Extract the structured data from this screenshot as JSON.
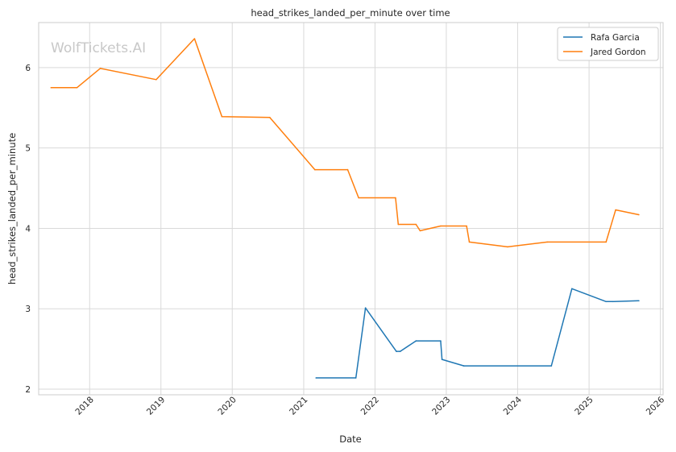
{
  "chart_data": {
    "type": "line",
    "title": "head_strikes_landed_per_minute over time",
    "xlabel": "Date",
    "ylabel": "head_strikes_landed_per_minute",
    "watermark": "WolfTickets.AI",
    "x_ticks": [
      "2018",
      "2019",
      "2020",
      "2021",
      "2022",
      "2023",
      "2024",
      "2025",
      "2026"
    ],
    "y_ticks": [
      "2",
      "3",
      "4",
      "5",
      "6"
    ],
    "xlim": [
      "2017-04-15",
      "2026-01-15"
    ],
    "ylim": [
      1.93,
      6.56
    ],
    "grid": true,
    "legend_position": "top-right",
    "series": [
      {
        "name": "Rafa Garcia",
        "color": "#1f77b4",
        "points": [
          [
            "2021-03-05",
            2.14
          ],
          [
            "2021-09-25",
            2.14
          ],
          [
            "2021-11-13",
            3.01
          ],
          [
            "2022-04-20",
            2.47
          ],
          [
            "2022-05-10",
            2.47
          ],
          [
            "2022-07-30",
            2.6
          ],
          [
            "2022-12-03",
            2.6
          ],
          [
            "2022-12-10",
            2.37
          ],
          [
            "2023-04-01",
            2.29
          ],
          [
            "2024-06-22",
            2.29
          ],
          [
            "2024-10-05",
            3.25
          ],
          [
            "2025-03-29",
            3.09
          ],
          [
            "2025-05-03",
            3.09
          ],
          [
            "2025-09-13",
            3.1
          ]
        ]
      },
      {
        "name": "Jared Gordon",
        "color": "#ff7f0e",
        "points": [
          [
            "2017-06-17",
            5.75
          ],
          [
            "2017-10-28",
            5.75
          ],
          [
            "2018-02-24",
            5.99
          ],
          [
            "2018-12-08",
            5.85
          ],
          [
            "2019-06-22",
            6.36
          ],
          [
            "2019-11-09",
            5.39
          ],
          [
            "2020-07-11",
            5.38
          ],
          [
            "2021-02-27",
            4.73
          ],
          [
            "2021-08-14",
            4.73
          ],
          [
            "2021-10-09",
            4.38
          ],
          [
            "2022-04-16",
            4.38
          ],
          [
            "2022-04-30",
            4.05
          ],
          [
            "2022-07-30",
            4.05
          ],
          [
            "2022-08-20",
            3.97
          ],
          [
            "2022-12-03",
            4.03
          ],
          [
            "2023-04-15",
            4.03
          ],
          [
            "2023-04-29",
            3.83
          ],
          [
            "2023-11-11",
            3.77
          ],
          [
            "2024-06-01",
            3.83
          ],
          [
            "2025-03-29",
            3.83
          ],
          [
            "2025-05-17",
            4.23
          ],
          [
            "2025-09-13",
            4.17
          ]
        ]
      }
    ]
  }
}
